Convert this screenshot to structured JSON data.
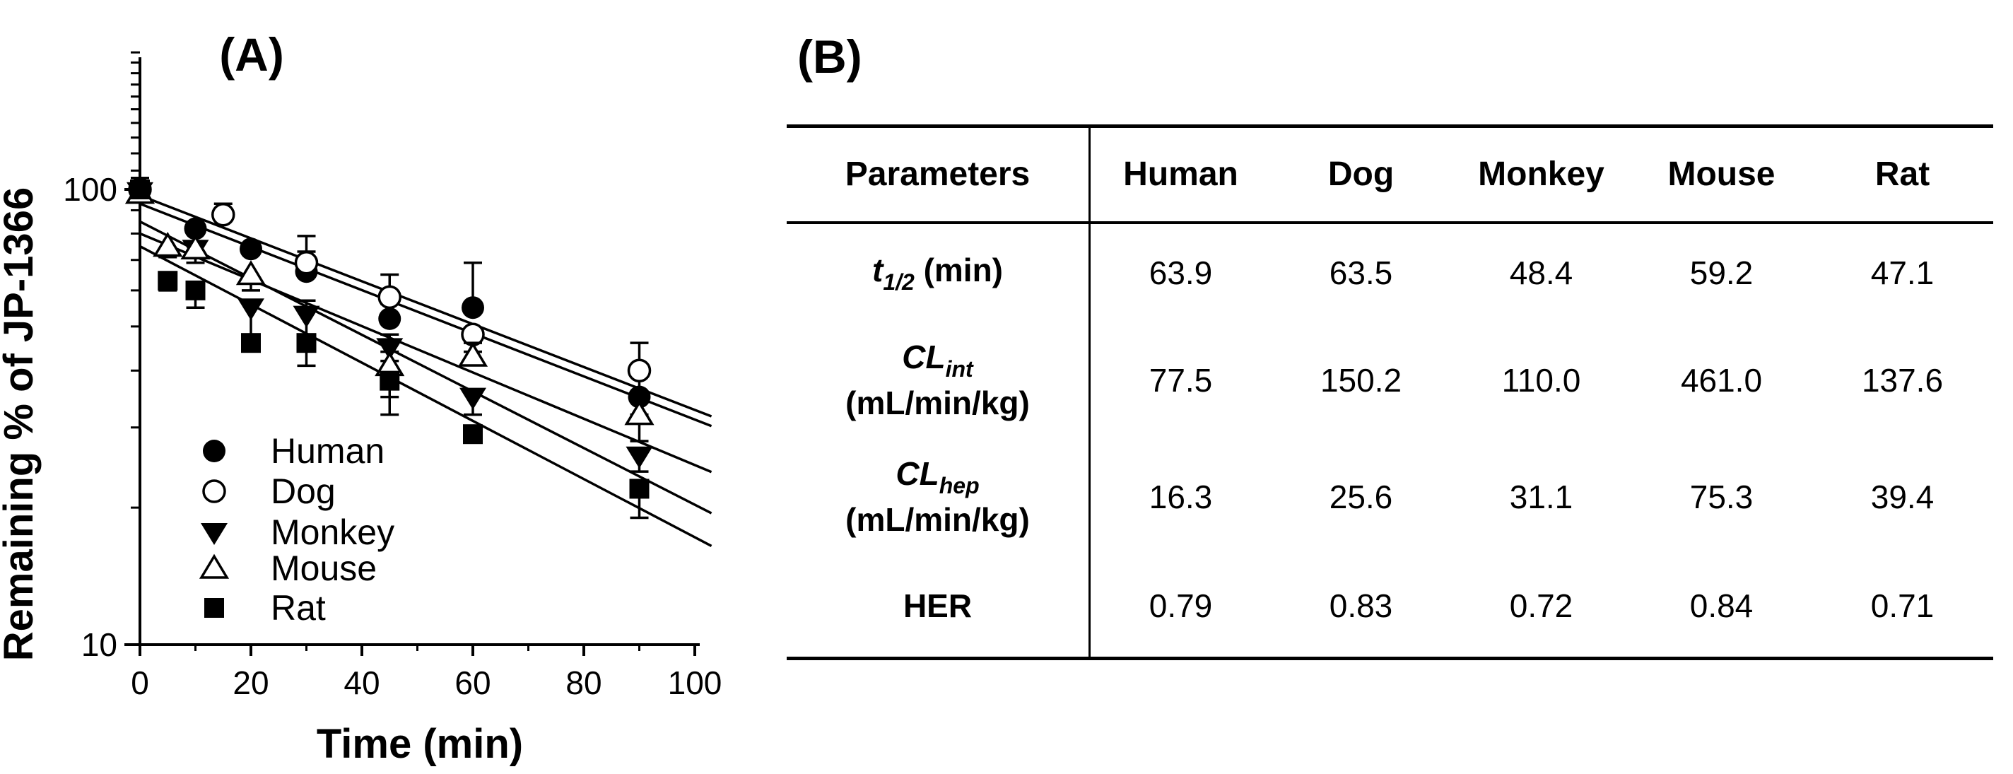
{
  "panels": {
    "a_label": "(A)",
    "b_label": "(B)"
  },
  "chart_data": {
    "type": "scatter",
    "title": "(A)",
    "xlabel": "Time (min)",
    "ylabel": "Remaining % of JP-1366",
    "x_axis": {
      "min": 0,
      "max": 100,
      "major_ticks": [
        0,
        20,
        40,
        60,
        80,
        100
      ],
      "minor_ticks": [
        10,
        30,
        50,
        70,
        90
      ]
    },
    "y_axis": {
      "scale": "log",
      "min": 10,
      "max": 200,
      "major_ticks": [
        10,
        100
      ],
      "minor_ticks": [
        20,
        30,
        40,
        50,
        60,
        70,
        80,
        90,
        110,
        120,
        130,
        140,
        150,
        160,
        170,
        180,
        190,
        200
      ]
    },
    "legend": {
      "position": "lower-left",
      "entries": [
        "Human",
        "Dog",
        "Monkey",
        "Mouse",
        "Rat"
      ]
    },
    "series": [
      {
        "name": "Human",
        "marker": "circle-filled",
        "fit_line": {
          "y0": 97,
          "t_half_min": 63.9
        },
        "points": [
          {
            "t": 0,
            "v": 100,
            "eu": 6,
            "ed": 4
          },
          {
            "t": 10,
            "v": 82
          },
          {
            "t": 20,
            "v": 74
          },
          {
            "t": 30,
            "v": 66,
            "eu": 7
          },
          {
            "t": 45,
            "v": 52,
            "eu": 4
          },
          {
            "t": 60,
            "v": 55,
            "eu": 14
          },
          {
            "t": 90,
            "v": 35,
            "eu": 4,
            "ed": 3
          }
        ]
      },
      {
        "name": "Dog",
        "marker": "circle-open",
        "fit_line": {
          "y0": 93,
          "t_half_min": 63.5
        },
        "points": [
          {
            "t": 0,
            "v": 100
          },
          {
            "t": 15,
            "v": 88,
            "eu": 5
          },
          {
            "t": 30,
            "v": 69,
            "eu": 10
          },
          {
            "t": 45,
            "v": 58,
            "eu": 7
          },
          {
            "t": 60,
            "v": 48,
            "ed": 4
          },
          {
            "t": 90,
            "v": 40,
            "eu": 6
          }
        ]
      },
      {
        "name": "Monkey",
        "marker": "triangle-down-filled",
        "fit_line": {
          "y0": 85,
          "t_half_min": 48.4
        },
        "points": [
          {
            "t": 0,
            "v": 99
          },
          {
            "t": 10,
            "v": 74,
            "ed": 5
          },
          {
            "t": 20,
            "v": 55,
            "ed": 7
          },
          {
            "t": 30,
            "v": 53,
            "eu": 4,
            "ed": 6
          },
          {
            "t": 45,
            "v": 45,
            "eu": 3,
            "ed": 3
          },
          {
            "t": 60,
            "v": 35,
            "ed": 3
          },
          {
            "t": 90,
            "v": 26,
            "ed": 2
          }
        ]
      },
      {
        "name": "Mouse",
        "marker": "triangle-up-open",
        "fit_line": {
          "y0": 80,
          "t_half_min": 59.2
        },
        "points": [
          {
            "t": 0,
            "v": 98
          },
          {
            "t": 5,
            "v": 75,
            "ed": 4
          },
          {
            "t": 10,
            "v": 74,
            "ed": 3
          },
          {
            "t": 20,
            "v": 65,
            "ed": 5
          },
          {
            "t": 45,
            "v": 41,
            "eu": 3,
            "ed": 6
          },
          {
            "t": 60,
            "v": 43,
            "eu": 3
          },
          {
            "t": 90,
            "v": 32,
            "ed": 4
          }
        ]
      },
      {
        "name": "Rat",
        "marker": "square-filled",
        "fit_line": {
          "y0": 75,
          "t_half_min": 47.1
        },
        "points": [
          {
            "t": 0,
            "v": 100
          },
          {
            "t": 5,
            "v": 63,
            "ed": 3
          },
          {
            "t": 10,
            "v": 60,
            "ed": 5
          },
          {
            "t": 20,
            "v": 46
          },
          {
            "t": 30,
            "v": 46,
            "ed": 5
          },
          {
            "t": 45,
            "v": 38,
            "ed": 6
          },
          {
            "t": 60,
            "v": 29
          },
          {
            "t": 90,
            "v": 22,
            "ed": 3
          }
        ]
      }
    ]
  },
  "table": {
    "label": "(B)",
    "columns": [
      "Parameters",
      "Human",
      "Dog",
      "Monkey",
      "Mouse",
      "Rat"
    ],
    "rows": [
      {
        "param": {
          "main": "t",
          "main_italic": true,
          "sub": "1/2",
          "suffix": " (min)"
        },
        "values": [
          "63.9",
          "63.5",
          "48.4",
          "59.2",
          "47.1"
        ]
      },
      {
        "param": {
          "main": "CL",
          "main_italic": true,
          "sub": "int",
          "line2": "(mL/min/kg)"
        },
        "values": [
          "77.5",
          "150.2",
          "110.0",
          "461.0",
          "137.6"
        ]
      },
      {
        "param": {
          "main": "CL",
          "main_italic": true,
          "sub": "hep",
          "line2": "(mL/min/kg)"
        },
        "values": [
          "16.3",
          "25.6",
          "31.1",
          "75.3",
          "39.4"
        ]
      },
      {
        "param": {
          "main": "HER",
          "main_italic": false
        },
        "values": [
          "0.79",
          "0.83",
          "0.72",
          "0.84",
          "0.71"
        ]
      }
    ]
  },
  "colors": {
    "ink": "#000000",
    "background": "#ffffff"
  }
}
